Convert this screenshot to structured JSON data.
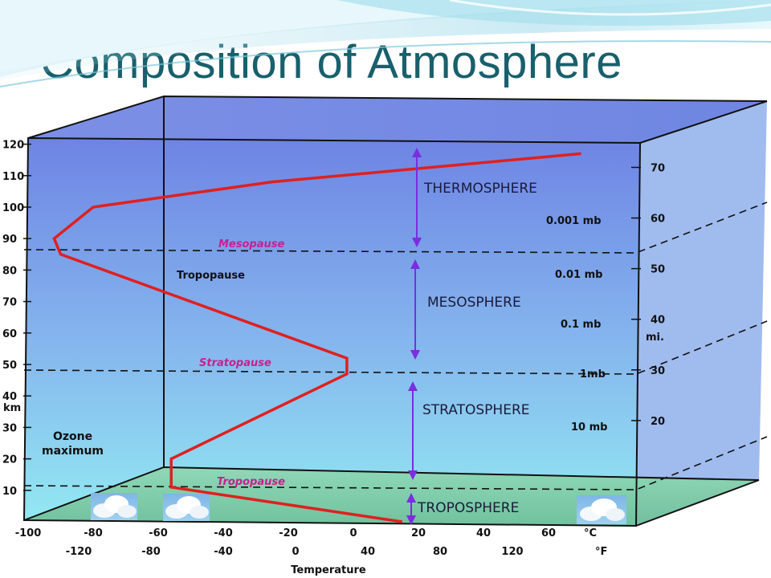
{
  "title": "Composition of Atmosphere",
  "colors": {
    "title": "#18606c",
    "temperature_curve": "#e0201e",
    "pause_label": "#c8208f",
    "layer_arrow": "#7a2ee0",
    "box_top": "#6e84e4",
    "box_bottom": "#8fe6ee",
    "ground": "#7fcaa8"
  },
  "diagram": {
    "left_axis": {
      "unit": "km",
      "ticks": [
        "120",
        "110",
        "100",
        "90",
        "80",
        "70",
        "60",
        "50",
        "40",
        "30",
        "20",
        "10"
      ]
    },
    "right_axis": {
      "unit": "mi.",
      "ticks": [
        "70",
        "60",
        "50",
        "40",
        "30",
        "20"
      ]
    },
    "pressure_labels": [
      "0.001 mb",
      "0.01 mb",
      "0.1 mb",
      "1mb",
      "10 mb"
    ],
    "layers": [
      "THERMOSPHERE",
      "MESOSPHERE",
      "STRATOSPHERE",
      "TROPOSPHERE"
    ],
    "pauses": [
      "Mesopause",
      "Stratopause",
      "Tropopause"
    ],
    "tropopause_side_label": "Tropopause",
    "ozone_label": [
      "Ozone",
      "maximum"
    ],
    "celsius_ticks": [
      "-100",
      "-80",
      "-60",
      "-40",
      "-20",
      "0",
      "20",
      "40",
      "60"
    ],
    "celsius_unit": "°C",
    "fahrenheit_ticks": [
      "-120",
      "-80",
      "-40",
      "0",
      "40",
      "80",
      "120"
    ],
    "fahrenheit_unit": "°F",
    "x_axis_title": "Temperature",
    "temperature_profile_c": [
      {
        "km": 0,
        "c": 15
      },
      {
        "km": 11,
        "c": -56
      },
      {
        "km": 20,
        "c": -56
      },
      {
        "km": 47,
        "c": -2
      },
      {
        "km": 52,
        "c": -2
      },
      {
        "km": 85,
        "c": -90
      },
      {
        "km": 90,
        "c": -92
      },
      {
        "km": 100,
        "c": -80
      },
      {
        "km": 108,
        "c": -25
      },
      {
        "km": 117,
        "c": 70
      }
    ]
  }
}
